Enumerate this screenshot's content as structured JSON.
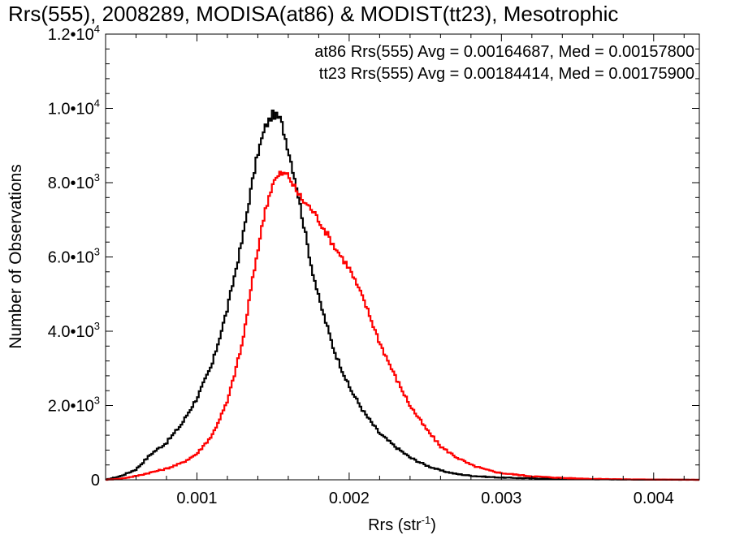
{
  "chart_data": {
    "type": "line",
    "title": "Rrs(555), 2008289, MODISA(at86) & MODIST(tt23), Mesotrophic",
    "xlabel": {
      "main": "Rrs (str",
      "sup": "-1",
      "close": ")"
    },
    "ylabel": "Number of Observations",
    "xlim": [
      0.0004,
      0.0043
    ],
    "ylim": [
      0,
      12000
    ],
    "x_ticks": [
      {
        "value": 0.001,
        "label": "0.001"
      },
      {
        "value": 0.002,
        "label": "0.002"
      },
      {
        "value": 0.003,
        "label": "0.003"
      },
      {
        "value": 0.004,
        "label": "0.004"
      }
    ],
    "y_ticks": [
      {
        "value": 0,
        "mantissa": "0",
        "exponent": ""
      },
      {
        "value": 2000,
        "mantissa": "2.0•10",
        "exponent": "3"
      },
      {
        "value": 4000,
        "mantissa": "4.0•10",
        "exponent": "3"
      },
      {
        "value": 6000,
        "mantissa": "6.0•10",
        "exponent": "3"
      },
      {
        "value": 8000,
        "mantissa": "8.0•10",
        "exponent": "3"
      },
      {
        "value": 10000,
        "mantissa": "1.0•10",
        "exponent": "4"
      },
      {
        "value": 12000,
        "mantissa": "1.2•10",
        "exponent": "4"
      }
    ],
    "grid": false,
    "legend_position": "top-right",
    "series": [
      {
        "name": "at86",
        "label": "at86 Rrs(555) Avg = 0.00164687, Med = 0.00157800",
        "color": "#000000",
        "step": true,
        "x": [
          0.0004,
          0.0005,
          0.0006,
          0.0007,
          0.0008,
          0.0009,
          0.001,
          0.0011,
          0.0012,
          0.0013,
          0.00135,
          0.0014,
          0.00145,
          0.0015,
          0.00155,
          0.0016,
          0.00165,
          0.0017,
          0.00175,
          0.0018,
          0.0019,
          0.002,
          0.0021,
          0.0022,
          0.0023,
          0.0024,
          0.0025,
          0.0026,
          0.0027,
          0.0028,
          0.0029,
          0.003,
          0.0032,
          0.0034,
          0.0036,
          0.0038,
          0.004,
          0.0043
        ],
        "y": [
          0,
          100,
          280,
          700,
          1000,
          1500,
          2200,
          3100,
          4600,
          6500,
          7700,
          8800,
          9500,
          9850,
          9700,
          8900,
          8000,
          6900,
          5800,
          4900,
          3500,
          2500,
          1800,
          1250,
          900,
          600,
          400,
          250,
          160,
          110,
          80,
          60,
          40,
          25,
          15,
          10,
          5,
          0
        ]
      },
      {
        "name": "tt23",
        "label": "tt23 Rrs(555) Avg = 0.00184414, Med = 0.00175900",
        "color": "#ff0000",
        "step": true,
        "x": [
          0.0004,
          0.0005,
          0.0006,
          0.0007,
          0.0008,
          0.0009,
          0.001,
          0.0011,
          0.0012,
          0.0013,
          0.00135,
          0.0014,
          0.00145,
          0.0015,
          0.00155,
          0.0016,
          0.00165,
          0.0017,
          0.00175,
          0.0018,
          0.0019,
          0.002,
          0.0021,
          0.0022,
          0.0023,
          0.0024,
          0.0025,
          0.0026,
          0.0027,
          0.0028,
          0.0029,
          0.003,
          0.0032,
          0.0034,
          0.0036,
          0.0038,
          0.004,
          0.0043
        ],
        "y": [
          0,
          30,
          100,
          200,
          300,
          450,
          700,
          1200,
          2100,
          3700,
          5000,
          6200,
          7300,
          8000,
          8250,
          8200,
          7800,
          7500,
          7300,
          7000,
          6300,
          5700,
          4800,
          3700,
          2800,
          2000,
          1400,
          900,
          620,
          400,
          270,
          180,
          95,
          50,
          25,
          12,
          6,
          0
        ]
      }
    ]
  }
}
